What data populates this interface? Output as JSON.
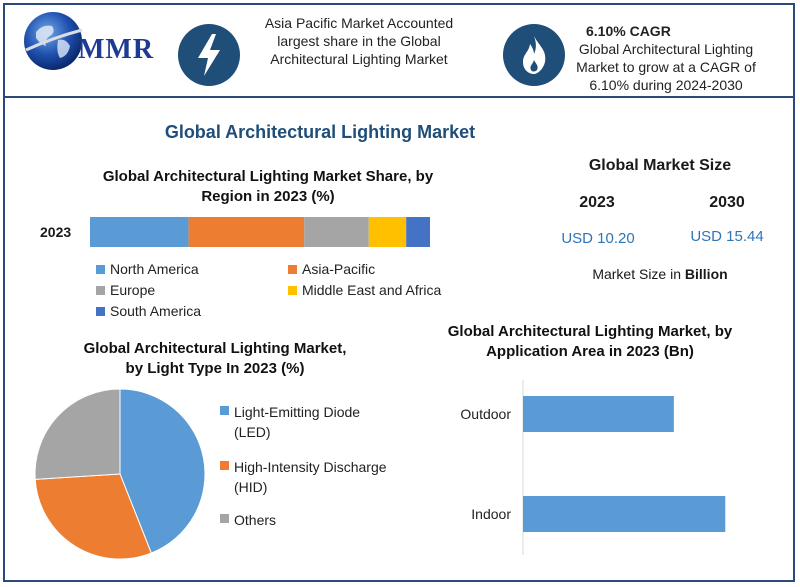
{
  "header": {
    "logo_text": "MMR",
    "banner1": {
      "line1": "Asia Pacific Market Accounted",
      "line2": "largest share in the Global",
      "line3": "Architectural Lighting Market"
    },
    "banner2": {
      "title": "6.10% CAGR",
      "line1": "Global Architectural Lighting",
      "line2": "Market to grow at a CAGR of",
      "line3": "6.10% during 2024-2030"
    },
    "icons": {
      "left": "lightning-bolt-icon",
      "right": "flame-icon"
    }
  },
  "main_title": "Global Architectural Lighting Market",
  "market_size": {
    "title": "Global Market Size",
    "year1": "2023",
    "year2": "2030",
    "value1": "USD 10.20",
    "value2": "USD 15.44",
    "unit_prefix": "Market Size in",
    "unit_bold": "Billion"
  },
  "colors": {
    "north_america": "#5b9bd5",
    "asia_pacific": "#ed7d31",
    "europe": "#a5a5a5",
    "middle_east": "#ffc000",
    "south_america": "#4472c4",
    "brand": "#1f4e79"
  },
  "chart_data": [
    {
      "type": "bar",
      "orientation": "horizontal-stacked",
      "title": "Global Architectural Lighting Market Share, by Region in 2023 (%)",
      "categories": [
        "2023"
      ],
      "series": [
        {
          "name": "North America",
          "values": [
            29
          ]
        },
        {
          "name": "Asia-Pacific",
          "values": [
            34
          ]
        },
        {
          "name": "Europe",
          "values": [
            19
          ]
        },
        {
          "name": "Middle East and Africa",
          "values": [
            11
          ]
        },
        {
          "name": "South America",
          "values": [
            7
          ]
        }
      ],
      "legend": "bottom"
    },
    {
      "type": "pie",
      "title": "Global Architectural Lighting Market, by Light Type In 2023 (%)",
      "labels": [
        "Light-Emitting Diode (LED)",
        "High-Intensity Discharge (HID)",
        "Others"
      ],
      "values": [
        44,
        30,
        26
      ],
      "legend": "right"
    },
    {
      "type": "bar",
      "orientation": "horizontal",
      "title": "Global Architectural Lighting Market, by Application Area in 2023 (Bn)",
      "categories": [
        "Outdoor",
        "Indoor"
      ],
      "values": [
        4.4,
        5.9
      ]
    }
  ]
}
